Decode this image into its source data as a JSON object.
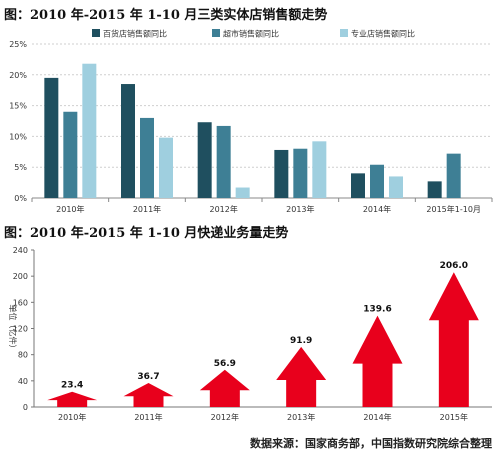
{
  "chart_data": [
    {
      "type": "bar",
      "title": "图：2010 年-2015 年 1-10 月三类实体店销售额走势",
      "categories": [
        "2010年",
        "2011年",
        "2012年",
        "2013年",
        "2014年",
        "2015年1-10月"
      ],
      "series": [
        {
          "name": "百货店销售额同比",
          "values": [
            19.5,
            18.5,
            12.3,
            7.8,
            4.0,
            2.7
          ],
          "color": "#1f4f5f"
        },
        {
          "name": "超市销售额同比",
          "values": [
            14.0,
            13.0,
            11.7,
            8.0,
            5.4,
            7.2
          ],
          "color": "#3e7f95"
        },
        {
          "name": "专业店销售额同比",
          "values": [
            21.8,
            9.8,
            1.7,
            9.2,
            3.5,
            null
          ],
          "color": "#9fcfdf"
        }
      ],
      "yticks": [
        "0%",
        "5%",
        "10%",
        "15%",
        "20%",
        "25%"
      ],
      "ylim": [
        0,
        25
      ],
      "grid": true,
      "legend": "top"
    },
    {
      "type": "bar",
      "title": "图：2010 年-2015 年 1-10 月快递业务量走势",
      "categories": [
        "2010年",
        "2011年",
        "2012年",
        "2013年",
        "2014年",
        "2015年"
      ],
      "values": [
        23.4,
        36.7,
        56.9,
        91.9,
        139.6,
        206.0
      ],
      "labels": [
        "23.4",
        "36.7",
        "56.9",
        "91.9",
        "139.6",
        "206.0"
      ],
      "ylabel": "单位（亿件）",
      "yticks": [
        "0",
        "40",
        "80",
        "120",
        "160",
        "200",
        "240"
      ],
      "ylim": [
        0,
        240
      ],
      "grid": false,
      "mark_color": "#e8001c"
    }
  ],
  "source": "数据来源：国家商务部，中国指数研究院综合整理"
}
